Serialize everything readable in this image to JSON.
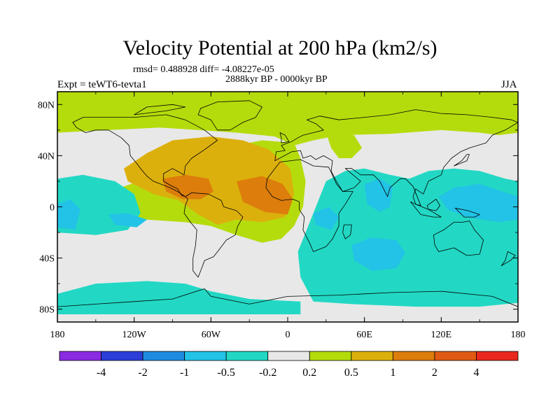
{
  "title": "Velocity Potential at 200 hPa (km2/s)",
  "stats": "rmsd= 0.488928 diff= -4.08227e-05",
  "period": "2888kyr BP - 0000kyr BP",
  "expt": "Expt = teWT6-tevta1",
  "season": "JJA",
  "chart_data": {
    "type": "heatmap",
    "title": "Velocity Potential at 200 hPa (km2/s)",
    "projection": "cylindrical equidistant",
    "xlim": [
      -180,
      180
    ],
    "ylim": [
      -90,
      90
    ],
    "x_ticks": [
      {
        "value": -180,
        "label": "180"
      },
      {
        "value": -120,
        "label": "120W"
      },
      {
        "value": -60,
        "label": "60W"
      },
      {
        "value": 0,
        "label": "0"
      },
      {
        "value": 60,
        "label": "60E"
      },
      {
        "value": 120,
        "label": "120E"
      },
      {
        "value": 180,
        "label": "180"
      }
    ],
    "y_ticks": [
      {
        "value": 80,
        "label": "80N"
      },
      {
        "value": 40,
        "label": "40N"
      },
      {
        "value": 0,
        "label": "0"
      },
      {
        "value": -40,
        "label": "40S"
      },
      {
        "value": -80,
        "label": "80S"
      }
    ],
    "colorbar": {
      "levels": [
        -4,
        -2,
        -1,
        -0.5,
        -0.2,
        0.2,
        0.5,
        1,
        2,
        4
      ],
      "labels": [
        "-4",
        "-2",
        "-1",
        "-0.5",
        "-0.2",
        "0.2",
        "0.5",
        "1",
        "2",
        "4"
      ],
      "colors": [
        "#8a2be2",
        "#2b3ed8",
        "#1f8be0",
        "#22c3e6",
        "#22d8c4",
        "#e8e8e8",
        "#b4dc0c",
        "#dcb00c",
        "#dc7d0c",
        "#e05a14",
        "#e8281e"
      ]
    },
    "regions": [
      {
        "id": "northern-band",
        "class": "0.2 to 0.5",
        "lon": [
          -180,
          180
        ],
        "lat": [
          55,
          90
        ]
      },
      {
        "id": "atlantic-positive",
        "class": "0.5 to 1",
        "lon": [
          -125,
          5
        ],
        "lat": [
          -10,
          55
        ]
      },
      {
        "id": "africa-max",
        "class": "1 to 2",
        "lon": [
          -40,
          5
        ],
        "lat": [
          -5,
          25
        ]
      },
      {
        "id": "central-america-max",
        "class": "1 to 2",
        "lon": [
          -100,
          -55
        ],
        "lat": [
          5,
          25
        ]
      },
      {
        "id": "indian-ocean-min",
        "class": "-1 to -0.5",
        "lon": [
          50,
          90
        ],
        "lat": [
          -50,
          -25
        ]
      },
      {
        "id": "arabian-sea-min",
        "class": "-1 to -0.5",
        "lon": [
          58,
          82
        ],
        "lat": [
          -5,
          20
        ]
      },
      {
        "id": "west-pacific-min",
        "class": "-1 to -0.5",
        "lon": [
          120,
          180
        ],
        "lat": [
          -10,
          15
        ]
      },
      {
        "id": "east-pacific-min",
        "class": "-1 to -0.5",
        "lon": [
          -180,
          -160
        ],
        "lat": [
          -20,
          5
        ]
      },
      {
        "id": "southern-ocean",
        "class": "-0.5 to -0.2",
        "lon": [
          20,
          180
        ],
        "lat": [
          -75,
          -5
        ]
      }
    ]
  }
}
